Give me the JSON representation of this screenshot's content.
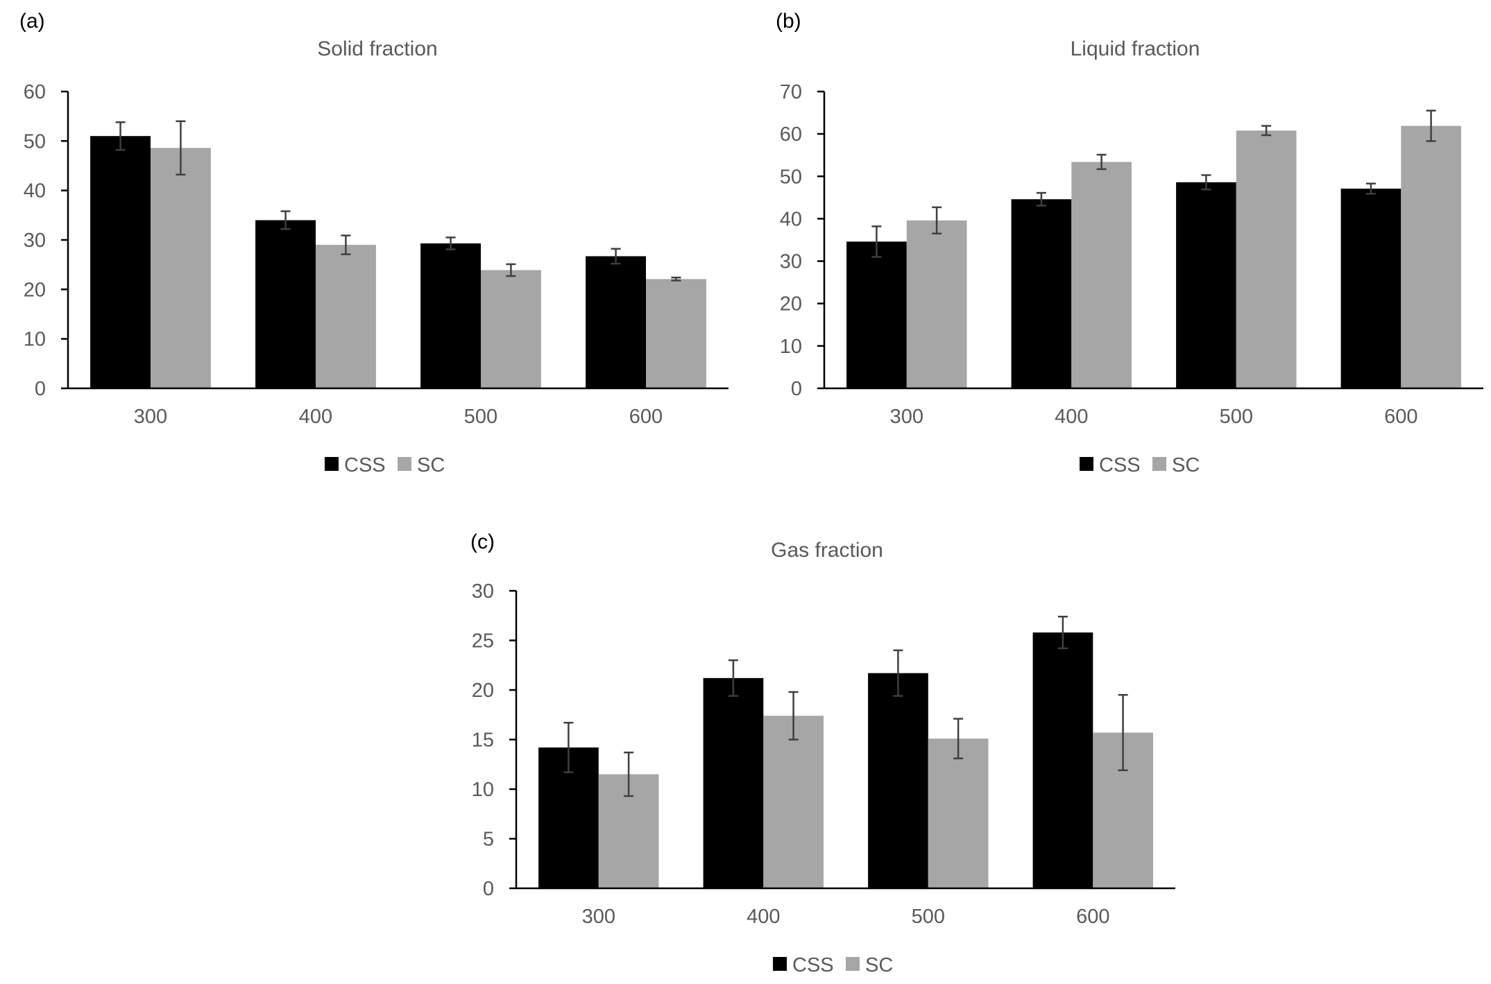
{
  "colors": {
    "CSS": "#000000",
    "SC": "#a6a6a6"
  },
  "chart_data": [
    {
      "type": "bar",
      "panel": "(a)",
      "title": "Solid fraction",
      "categories": [
        "300",
        "400",
        "500",
        "600"
      ],
      "ylim": [
        0,
        60
      ],
      "yticks": [
        0,
        10,
        20,
        30,
        40,
        50,
        60
      ],
      "legend": [
        "CSS",
        "SC"
      ],
      "series": [
        {
          "name": "CSS",
          "values": [
            51,
            34,
            29.3,
            26.7
          ],
          "errors": [
            2.8,
            1.8,
            1.2,
            1.5
          ]
        },
        {
          "name": "SC",
          "values": [
            48.6,
            29,
            23.9,
            22.1
          ],
          "errors": [
            5.4,
            1.9,
            1.2,
            0.3
          ]
        }
      ]
    },
    {
      "type": "bar",
      "panel": "(b)",
      "title": "Liquid fraction",
      "categories": [
        "300",
        "400",
        "500",
        "600"
      ],
      "ylim": [
        0,
        70
      ],
      "yticks": [
        0,
        10,
        20,
        30,
        40,
        50,
        60,
        70
      ],
      "legend": [
        "CSS",
        "SC"
      ],
      "series": [
        {
          "name": "CSS",
          "values": [
            34.6,
            44.6,
            48.6,
            47.1
          ],
          "errors": [
            3.6,
            1.5,
            1.7,
            1.2
          ]
        },
        {
          "name": "SC",
          "values": [
            39.6,
            53.4,
            60.8,
            61.9
          ],
          "errors": [
            3.1,
            1.7,
            1.1,
            3.6
          ]
        }
      ]
    },
    {
      "type": "bar",
      "panel": "(c)",
      "title": "Gas fraction",
      "categories": [
        "300",
        "400",
        "500",
        "600"
      ],
      "ylim": [
        0,
        30
      ],
      "yticks": [
        0,
        5,
        10,
        15,
        20,
        25,
        30
      ],
      "legend": [
        "CSS",
        "SC"
      ],
      "series": [
        {
          "name": "CSS",
          "values": [
            14.2,
            21.2,
            21.7,
            25.8
          ],
          "errors": [
            2.5,
            1.8,
            2.3,
            1.6
          ]
        },
        {
          "name": "SC",
          "values": [
            11.5,
            17.4,
            15.1,
            15.7
          ],
          "errors": [
            2.2,
            2.4,
            2.0,
            3.8
          ]
        }
      ]
    }
  ]
}
